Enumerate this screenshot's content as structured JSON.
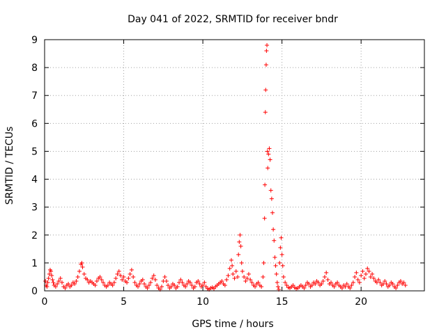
{
  "chart_data": {
    "type": "scatter",
    "title": "Day 041 of 2022, SRMTID for receiver bndr",
    "xlabel": "GPS time / hours",
    "ylabel": "SRMTID / TECUs",
    "xlim": [
      0,
      24
    ],
    "ylim": [
      0,
      9
    ],
    "xticks": [
      0,
      5,
      10,
      15,
      20
    ],
    "yticks": [
      0,
      1,
      2,
      3,
      4,
      5,
      6,
      7,
      8,
      9
    ],
    "grid": true,
    "legend": "none",
    "marker": "+",
    "series": [
      {
        "name": "SRMTID",
        "color": "#ff0000",
        "points": [
          [
            0.05,
            0.35
          ],
          [
            0.1,
            0.2
          ],
          [
            0.15,
            0.15
          ],
          [
            0.2,
            0.3
          ],
          [
            0.25,
            0.45
          ],
          [
            0.3,
            0.6
          ],
          [
            0.35,
            0.75
          ],
          [
            0.4,
            0.7
          ],
          [
            0.45,
            0.55
          ],
          [
            0.5,
            0.4
          ],
          [
            0.55,
            0.3
          ],
          [
            0.6,
            0.2
          ],
          [
            0.7,
            0.15
          ],
          [
            0.8,
            0.25
          ],
          [
            0.9,
            0.35
          ],
          [
            1.0,
            0.45
          ],
          [
            1.1,
            0.3
          ],
          [
            1.2,
            0.15
          ],
          [
            1.3,
            0.1
          ],
          [
            1.4,
            0.2
          ],
          [
            1.5,
            0.25
          ],
          [
            1.6,
            0.15
          ],
          [
            1.7,
            0.2
          ],
          [
            1.8,
            0.3
          ],
          [
            1.9,
            0.25
          ],
          [
            2.0,
            0.35
          ],
          [
            2.1,
            0.5
          ],
          [
            2.2,
            0.7
          ],
          [
            2.3,
            0.95
          ],
          [
            2.35,
            1.0
          ],
          [
            2.4,
            0.85
          ],
          [
            2.5,
            0.6
          ],
          [
            2.6,
            0.45
          ],
          [
            2.7,
            0.4
          ],
          [
            2.8,
            0.3
          ],
          [
            2.9,
            0.35
          ],
          [
            3.0,
            0.3
          ],
          [
            3.1,
            0.25
          ],
          [
            3.2,
            0.2
          ],
          [
            3.3,
            0.35
          ],
          [
            3.4,
            0.45
          ],
          [
            3.5,
            0.5
          ],
          [
            3.6,
            0.4
          ],
          [
            3.7,
            0.3
          ],
          [
            3.8,
            0.2
          ],
          [
            3.9,
            0.15
          ],
          [
            4.0,
            0.2
          ],
          [
            4.1,
            0.3
          ],
          [
            4.2,
            0.25
          ],
          [
            4.3,
            0.2
          ],
          [
            4.4,
            0.3
          ],
          [
            4.5,
            0.45
          ],
          [
            4.6,
            0.6
          ],
          [
            4.7,
            0.7
          ],
          [
            4.8,
            0.55
          ],
          [
            4.9,
            0.4
          ],
          [
            5.0,
            0.5
          ],
          [
            5.1,
            0.35
          ],
          [
            5.2,
            0.3
          ],
          [
            5.3,
            0.45
          ],
          [
            5.4,
            0.6
          ],
          [
            5.5,
            0.75
          ],
          [
            5.6,
            0.5
          ],
          [
            5.7,
            0.3
          ],
          [
            5.8,
            0.2
          ],
          [
            5.9,
            0.15
          ],
          [
            6.0,
            0.25
          ],
          [
            6.1,
            0.35
          ],
          [
            6.2,
            0.4
          ],
          [
            6.3,
            0.25
          ],
          [
            6.4,
            0.15
          ],
          [
            6.5,
            0.1
          ],
          [
            6.6,
            0.2
          ],
          [
            6.7,
            0.3
          ],
          [
            6.8,
            0.45
          ],
          [
            6.9,
            0.55
          ],
          [
            7.0,
            0.4
          ],
          [
            7.1,
            0.2
          ],
          [
            7.2,
            0.1
          ],
          [
            7.3,
            0.05
          ],
          [
            7.4,
            0.15
          ],
          [
            7.5,
            0.35
          ],
          [
            7.6,
            0.5
          ],
          [
            7.7,
            0.35
          ],
          [
            7.8,
            0.2
          ],
          [
            7.9,
            0.1
          ],
          [
            8.0,
            0.15
          ],
          [
            8.1,
            0.25
          ],
          [
            8.2,
            0.2
          ],
          [
            8.3,
            0.1
          ],
          [
            8.4,
            0.15
          ],
          [
            8.5,
            0.3
          ],
          [
            8.6,
            0.4
          ],
          [
            8.7,
            0.3
          ],
          [
            8.8,
            0.2
          ],
          [
            8.9,
            0.15
          ],
          [
            9.0,
            0.25
          ],
          [
            9.1,
            0.35
          ],
          [
            9.2,
            0.3
          ],
          [
            9.3,
            0.2
          ],
          [
            9.4,
            0.1
          ],
          [
            9.5,
            0.15
          ],
          [
            9.6,
            0.3
          ],
          [
            9.7,
            0.35
          ],
          [
            9.8,
            0.25
          ],
          [
            9.9,
            0.15
          ],
          [
            10.0,
            0.2
          ],
          [
            10.1,
            0.3
          ],
          [
            10.2,
            0.15
          ],
          [
            10.3,
            0.08
          ],
          [
            10.4,
            0.05
          ],
          [
            10.5,
            0.1
          ],
          [
            10.6,
            0.12
          ],
          [
            10.7,
            0.08
          ],
          [
            10.8,
            0.15
          ],
          [
            10.9,
            0.2
          ],
          [
            11.0,
            0.25
          ],
          [
            11.1,
            0.3
          ],
          [
            11.2,
            0.35
          ],
          [
            11.3,
            0.25
          ],
          [
            11.4,
            0.2
          ],
          [
            11.5,
            0.4
          ],
          [
            11.6,
            0.55
          ],
          [
            11.7,
            0.8
          ],
          [
            11.8,
            1.1
          ],
          [
            11.85,
            0.9
          ],
          [
            11.9,
            0.6
          ],
          [
            12.0,
            0.45
          ],
          [
            12.1,
            0.7
          ],
          [
            12.2,
            0.5
          ],
          [
            12.25,
            1.3
          ],
          [
            12.3,
            1.75
          ],
          [
            12.35,
            2.0
          ],
          [
            12.4,
            1.6
          ],
          [
            12.45,
            1.0
          ],
          [
            12.5,
            0.7
          ],
          [
            12.6,
            0.5
          ],
          [
            12.7,
            0.35
          ],
          [
            12.8,
            0.45
          ],
          [
            12.9,
            0.6
          ],
          [
            13.0,
            0.4
          ],
          [
            13.1,
            0.3
          ],
          [
            13.2,
            0.2
          ],
          [
            13.3,
            0.15
          ],
          [
            13.4,
            0.25
          ],
          [
            13.5,
            0.3
          ],
          [
            13.6,
            0.2
          ],
          [
            13.7,
            0.15
          ],
          [
            13.8,
            0.5
          ],
          [
            13.85,
            1.0
          ],
          [
            13.9,
            2.6
          ],
          [
            13.92,
            3.8
          ],
          [
            13.95,
            6.4
          ],
          [
            13.97,
            7.2
          ],
          [
            14.0,
            8.1
          ],
          [
            14.02,
            8.6
          ],
          [
            14.05,
            8.8
          ],
          [
            14.08,
            5.0
          ],
          [
            14.1,
            4.4
          ],
          [
            14.15,
            4.9
          ],
          [
            14.2,
            5.1
          ],
          [
            14.25,
            4.7
          ],
          [
            14.3,
            3.6
          ],
          [
            14.35,
            3.3
          ],
          [
            14.4,
            2.8
          ],
          [
            14.45,
            2.2
          ],
          [
            14.5,
            1.8
          ],
          [
            14.55,
            1.2
          ],
          [
            14.6,
            0.9
          ],
          [
            14.65,
            0.6
          ],
          [
            14.7,
            0.3
          ],
          [
            14.75,
            0.15
          ],
          [
            14.8,
            0.05
          ],
          [
            14.85,
            1.0
          ],
          [
            14.9,
            1.55
          ],
          [
            14.95,
            1.9
          ],
          [
            15.0,
            1.3
          ],
          [
            15.05,
            0.9
          ],
          [
            15.1,
            0.5
          ],
          [
            15.2,
            0.3
          ],
          [
            15.3,
            0.2
          ],
          [
            15.4,
            0.12
          ],
          [
            15.5,
            0.1
          ],
          [
            15.6,
            0.15
          ],
          [
            15.7,
            0.2
          ],
          [
            15.8,
            0.12
          ],
          [
            15.9,
            0.08
          ],
          [
            16.0,
            0.1
          ],
          [
            16.1,
            0.15
          ],
          [
            16.2,
            0.2
          ],
          [
            16.3,
            0.15
          ],
          [
            16.4,
            0.1
          ],
          [
            16.5,
            0.2
          ],
          [
            16.6,
            0.3
          ],
          [
            16.7,
            0.25
          ],
          [
            16.8,
            0.15
          ],
          [
            16.9,
            0.2
          ],
          [
            17.0,
            0.3
          ],
          [
            17.1,
            0.25
          ],
          [
            17.2,
            0.35
          ],
          [
            17.3,
            0.3
          ],
          [
            17.4,
            0.2
          ],
          [
            17.5,
            0.25
          ],
          [
            17.6,
            0.35
          ],
          [
            17.7,
            0.5
          ],
          [
            17.8,
            0.65
          ],
          [
            17.9,
            0.4
          ],
          [
            18.0,
            0.25
          ],
          [
            18.1,
            0.3
          ],
          [
            18.2,
            0.2
          ],
          [
            18.3,
            0.15
          ],
          [
            18.4,
            0.25
          ],
          [
            18.5,
            0.3
          ],
          [
            18.6,
            0.2
          ],
          [
            18.7,
            0.15
          ],
          [
            18.8,
            0.1
          ],
          [
            18.9,
            0.2
          ],
          [
            19.0,
            0.15
          ],
          [
            19.1,
            0.25
          ],
          [
            19.2,
            0.15
          ],
          [
            19.3,
            0.1
          ],
          [
            19.4,
            0.2
          ],
          [
            19.5,
            0.3
          ],
          [
            19.6,
            0.5
          ],
          [
            19.7,
            0.65
          ],
          [
            19.8,
            0.4
          ],
          [
            19.9,
            0.3
          ],
          [
            20.0,
            0.55
          ],
          [
            20.1,
            0.7
          ],
          [
            20.2,
            0.45
          ],
          [
            20.3,
            0.6
          ],
          [
            20.4,
            0.8
          ],
          [
            20.5,
            0.7
          ],
          [
            20.6,
            0.5
          ],
          [
            20.7,
            0.6
          ],
          [
            20.8,
            0.45
          ],
          [
            20.9,
            0.35
          ],
          [
            21.0,
            0.3
          ],
          [
            21.1,
            0.4
          ],
          [
            21.2,
            0.3
          ],
          [
            21.3,
            0.2
          ],
          [
            21.4,
            0.25
          ],
          [
            21.5,
            0.35
          ],
          [
            21.6,
            0.25
          ],
          [
            21.7,
            0.15
          ],
          [
            21.8,
            0.2
          ],
          [
            21.9,
            0.3
          ],
          [
            22.0,
            0.25
          ],
          [
            22.1,
            0.15
          ],
          [
            22.2,
            0.1
          ],
          [
            22.3,
            0.2
          ],
          [
            22.4,
            0.3
          ],
          [
            22.5,
            0.35
          ],
          [
            22.6,
            0.25
          ],
          [
            22.7,
            0.3
          ],
          [
            22.8,
            0.2
          ]
        ]
      }
    ]
  }
}
